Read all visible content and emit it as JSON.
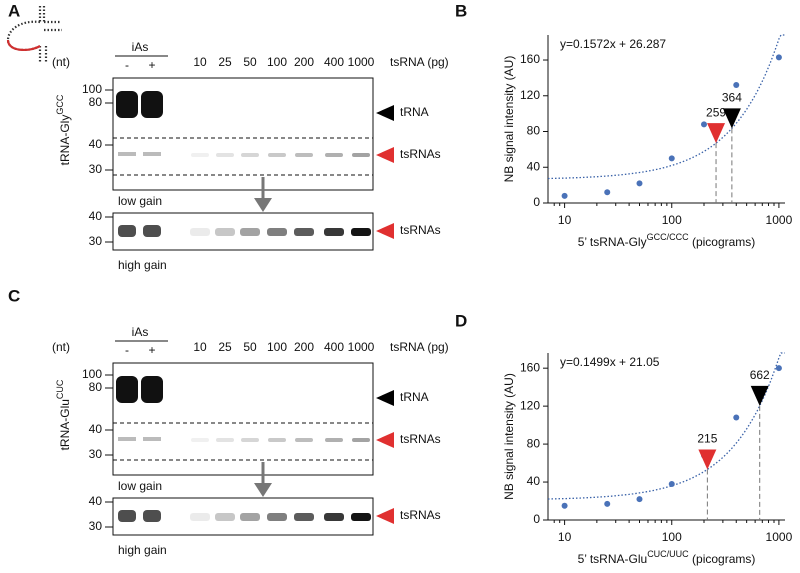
{
  "panels": [
    "A",
    "B",
    "C",
    "D"
  ],
  "blots": [
    {
      "ylabel": "tRNA-Gly",
      "ylabel_sup": "GCC",
      "nt": "(nt)",
      "iAs": "iAs",
      "iAs_lanes": [
        "-",
        "+"
      ],
      "lanes": [
        10,
        25,
        50,
        100,
        200,
        400,
        1000
      ],
      "lanes_unit": "tsRNA (pg)",
      "size_markers": [
        100,
        80,
        40,
        30
      ],
      "high_markers": [
        40,
        30
      ],
      "bands": [
        "tRNA",
        "tsRNAs"
      ],
      "high_band": "tsRNAs",
      "low_gain": "low gain",
      "high_gain": "high gain"
    },
    {
      "ylabel": "tRNA-Glu",
      "ylabel_sup": "CUC",
      "nt": "(nt)",
      "iAs": "iAs",
      "iAs_lanes": [
        "-",
        "+"
      ],
      "lanes": [
        10,
        25,
        50,
        100,
        200,
        400,
        1000
      ],
      "lanes_unit": "tsRNA (pg)",
      "size_markers": [
        100,
        80,
        40,
        30
      ],
      "high_markers": [
        40,
        30
      ],
      "bands": [
        "tRNA",
        "tsRNAs"
      ],
      "high_band": "tsRNAs",
      "low_gain": "low gain",
      "high_gain": "high gain"
    }
  ],
  "chart_data": [
    {
      "type": "scatter",
      "equation": "y=0.1572x + 26.287",
      "fit": {
        "slope": 0.1572,
        "intercept": 26.287
      },
      "xlabel": "5’ tsRNA-Gly",
      "xlabel_sup": "GCC/CCC",
      "xlabel_end": " (picograms)",
      "ylabel": "NB signal intensity (AU)",
      "color": "#4a72b8",
      "fit_color": "#3a62a8",
      "x": [
        10,
        25,
        50,
        100,
        200,
        400,
        1000
      ],
      "values": [
        8,
        12,
        22,
        50,
        88,
        132,
        163
      ],
      "xlog": true,
      "xlim": [
        7,
        1140
      ],
      "xticks": [
        10,
        100,
        1000
      ],
      "ylim": [
        0,
        188
      ],
      "yticks": [
        0,
        40,
        80,
        120,
        160
      ],
      "markers": [
        {
          "x": 259,
          "color": "#e03030"
        },
        {
          "x": 364,
          "color": "#000000"
        }
      ]
    },
    {
      "type": "scatter",
      "equation": "y=0.1499x + 21.05",
      "fit": {
        "slope": 0.1499,
        "intercept": 21.05
      },
      "xlabel": "5’ tsRNA-Glu",
      "xlabel_sup": "CUC/UUC",
      "xlabel_end": " (picograms)",
      "ylabel": "NB signal intensity (AU)",
      "color": "#4a72b8",
      "fit_color": "#3a62a8",
      "x": [
        10,
        25,
        50,
        100,
        200,
        400,
        1000
      ],
      "values": [
        15,
        17,
        22,
        38,
        68,
        108,
        160
      ],
      "xlog": true,
      "xlim": [
        7,
        1140
      ],
      "xticks": [
        10,
        100,
        1000
      ],
      "ylim": [
        0,
        176
      ],
      "yticks": [
        0,
        40,
        80,
        120,
        160
      ],
      "markers": [
        {
          "x": 215,
          "color": "#e03030"
        },
        {
          "x": 662,
          "color": "#000000"
        }
      ]
    }
  ]
}
